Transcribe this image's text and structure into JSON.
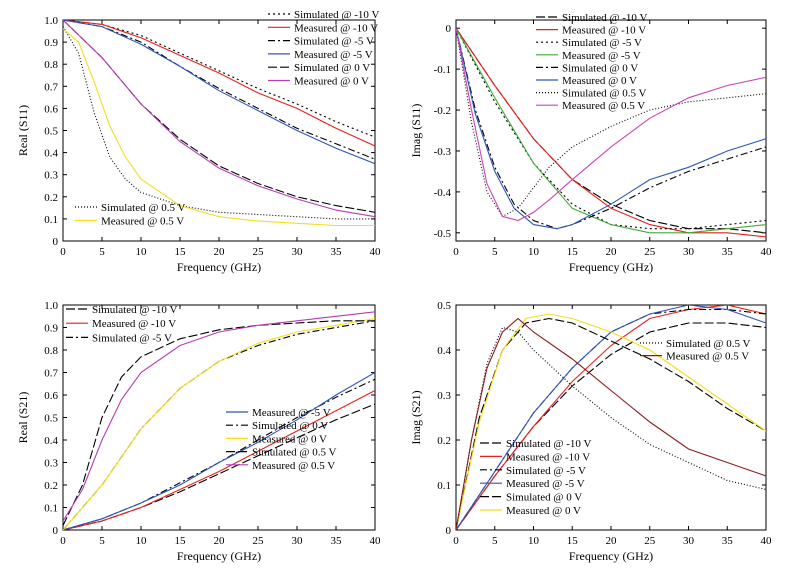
{
  "chart_data": [
    {
      "type": "line",
      "xlabel": "Frequency (GHz)",
      "ylabel": "Real (S11)",
      "xlim": [
        0,
        40
      ],
      "ylim": [
        0,
        1.0
      ],
      "xticks": [
        "0",
        "5",
        "10",
        "15",
        "20",
        "25",
        "30",
        "35",
        "40"
      ],
      "yticks": [
        "0",
        "0.1",
        "0.2",
        "0.3",
        "0.4",
        "0.5",
        "0.6",
        "0.7",
        "0.8",
        "0.9",
        "1.0"
      ],
      "legend_position": "top-right",
      "legend2_position": "bottom-left",
      "series": [
        {
          "name": "Simulated @ -10 V",
          "color": "#000000",
          "dash": "2,3",
          "x": [
            0,
            5,
            10,
            15,
            20,
            25,
            30,
            35,
            40
          ],
          "y": [
            1.0,
            0.98,
            0.93,
            0.85,
            0.77,
            0.69,
            0.62,
            0.54,
            0.47
          ]
        },
        {
          "name": "Measured @ -10 V",
          "color": "#e8201c",
          "dash": "",
          "x": [
            0,
            5,
            10,
            15,
            20,
            25,
            30,
            35,
            40
          ],
          "y": [
            1.0,
            0.98,
            0.92,
            0.84,
            0.76,
            0.67,
            0.6,
            0.51,
            0.43
          ]
        },
        {
          "name": "Simulated @ -5 V",
          "color": "#000000",
          "dash": "7,3,2,3",
          "x": [
            0,
            5,
            10,
            15,
            20,
            25,
            30,
            35,
            40
          ],
          "y": [
            1.0,
            0.97,
            0.9,
            0.79,
            0.69,
            0.6,
            0.51,
            0.44,
            0.37
          ]
        },
        {
          "name": "Measured @ -5 V",
          "color": "#2f55b7",
          "dash": "",
          "x": [
            0,
            5,
            10,
            15,
            20,
            25,
            30,
            35,
            40
          ],
          "y": [
            1.0,
            0.97,
            0.89,
            0.79,
            0.68,
            0.59,
            0.5,
            0.42,
            0.35
          ]
        },
        {
          "name": "Simulated @ 0 V",
          "color": "#000000",
          "dash": "9,3",
          "x": [
            0,
            5,
            10,
            15,
            20,
            25,
            30,
            35,
            40
          ],
          "y": [
            1.0,
            0.83,
            0.62,
            0.46,
            0.34,
            0.26,
            0.2,
            0.16,
            0.13
          ]
        },
        {
          "name": "Measured @ 0 V",
          "color": "#b53db4",
          "dash": "",
          "x": [
            0,
            5,
            10,
            15,
            20,
            25,
            30,
            35,
            40
          ],
          "y": [
            1.0,
            0.83,
            0.62,
            0.45,
            0.33,
            0.25,
            0.19,
            0.14,
            0.11
          ]
        },
        {
          "name": "Simulated @ 0.5 V",
          "color": "#000000",
          "dash": "1,2",
          "x": [
            0,
            2,
            4,
            6,
            8,
            10,
            15,
            20,
            25,
            30,
            35,
            40
          ],
          "y": [
            0.97,
            0.85,
            0.58,
            0.38,
            0.28,
            0.22,
            0.16,
            0.13,
            0.12,
            0.11,
            0.1,
            0.1
          ]
        },
        {
          "name": "Measured @ 0.5 V",
          "color": "#f2df1a",
          "dash": "",
          "x": [
            0,
            2,
            4,
            6,
            8,
            10,
            15,
            20,
            25,
            30,
            35,
            40
          ],
          "y": [
            0.96,
            0.9,
            0.72,
            0.52,
            0.38,
            0.28,
            0.16,
            0.11,
            0.09,
            0.08,
            0.07,
            0.07
          ]
        }
      ]
    },
    {
      "type": "line",
      "xlabel": "Frequency (GHz)",
      "ylabel": "Imag (S11)",
      "xlim": [
        0,
        40
      ],
      "ylim": [
        -0.52,
        0.02
      ],
      "xticks": [
        "0",
        "5",
        "10",
        "15",
        "20",
        "25",
        "30",
        "35",
        "40"
      ],
      "yticks": [
        "0",
        "-0.1",
        "-0.2",
        "-0.3",
        "-0.4",
        "-0.5"
      ],
      "legend_position": "top-right",
      "series": [
        {
          "name": "Simulated @ -10 V",
          "color": "#000000",
          "dash": "9,3",
          "x": [
            0,
            5,
            10,
            15,
            20,
            25,
            30,
            35,
            40
          ],
          "y": [
            0,
            -0.14,
            -0.27,
            -0.37,
            -0.43,
            -0.47,
            -0.49,
            -0.49,
            -0.5
          ]
        },
        {
          "name": "Measured @ -10 V",
          "color": "#e8201c",
          "dash": "",
          "x": [
            0,
            5,
            10,
            15,
            20,
            25,
            30,
            35,
            40
          ],
          "y": [
            0,
            -0.14,
            -0.27,
            -0.37,
            -0.44,
            -0.48,
            -0.5,
            -0.5,
            -0.51
          ]
        },
        {
          "name": "Simulated @ -5 V",
          "color": "#000000",
          "dash": "2,3",
          "x": [
            0,
            5,
            10,
            15,
            20,
            25,
            30,
            35,
            40
          ],
          "y": [
            0,
            -0.18,
            -0.33,
            -0.43,
            -0.48,
            -0.49,
            -0.49,
            -0.48,
            -0.47
          ]
        },
        {
          "name": "Measured @ -5 V",
          "color": "#3faa37",
          "dash": "",
          "x": [
            0,
            5,
            10,
            15,
            20,
            25,
            30,
            35,
            40
          ],
          "y": [
            0,
            -0.17,
            -0.33,
            -0.44,
            -0.48,
            -0.5,
            -0.5,
            -0.49,
            -0.48
          ]
        },
        {
          "name": "Simulated @ 0 V",
          "color": "#000000",
          "dash": "7,3,2,3",
          "x": [
            0,
            2.5,
            5,
            7.5,
            10,
            13,
            15,
            20,
            25,
            30,
            35,
            40
          ],
          "y": [
            0,
            -0.2,
            -0.34,
            -0.43,
            -0.47,
            -0.49,
            -0.48,
            -0.44,
            -0.39,
            -0.35,
            -0.32,
            -0.29
          ]
        },
        {
          "name": "Measured @ 0 V",
          "color": "#2f55b7",
          "dash": "",
          "x": [
            0,
            2.5,
            5,
            7.5,
            10,
            13,
            15,
            20,
            25,
            30,
            35,
            40
          ],
          "y": [
            0,
            -0.21,
            -0.35,
            -0.44,
            -0.48,
            -0.49,
            -0.48,
            -0.43,
            -0.37,
            -0.34,
            -0.3,
            -0.27
          ]
        },
        {
          "name": "Simulated @ 0.5 V",
          "color": "#000000",
          "dash": "1,2",
          "x": [
            0,
            2,
            4,
            6,
            8,
            10,
            12,
            15,
            20,
            25,
            30,
            35,
            40
          ],
          "y": [
            0,
            -0.23,
            -0.4,
            -0.46,
            -0.44,
            -0.39,
            -0.34,
            -0.29,
            -0.24,
            -0.2,
            -0.18,
            -0.17,
            -0.16
          ]
        },
        {
          "name": "Measured @ 0.5 V",
          "color": "#cc44b6",
          "dash": "",
          "x": [
            0,
            2,
            4,
            6,
            8,
            10,
            12,
            15,
            20,
            25,
            30,
            35,
            40
          ],
          "y": [
            0,
            -0.2,
            -0.38,
            -0.46,
            -0.47,
            -0.45,
            -0.42,
            -0.37,
            -0.29,
            -0.22,
            -0.17,
            -0.14,
            -0.12
          ]
        }
      ]
    },
    {
      "type": "line",
      "xlabel": "Frequency (GHz)",
      "ylabel": "Real (S21)",
      "xlim": [
        0,
        40
      ],
      "ylim": [
        0,
        1.0
      ],
      "xticks": [
        "0",
        "5",
        "10",
        "15",
        "20",
        "25",
        "30",
        "35",
        "40"
      ],
      "yticks": [
        "0",
        "0.1",
        "0.2",
        "0.3",
        "0.4",
        "0.5",
        "0.6",
        "0.7",
        "0.8",
        "0.9",
        "1.0"
      ],
      "legend_position": "top-left",
      "legend2_position": "bottom-right",
      "series": [
        {
          "name": "Simulated @ -10 V",
          "color": "#000000",
          "dash": "9,3",
          "x": [
            0,
            5,
            10,
            15,
            20,
            25,
            30,
            35,
            40
          ],
          "y": [
            0,
            0.04,
            0.1,
            0.17,
            0.25,
            0.33,
            0.41,
            0.49,
            0.56
          ]
        },
        {
          "name": "Measured @ -10 V",
          "color": "#e8201c",
          "dash": "",
          "x": [
            0,
            5,
            10,
            15,
            20,
            25,
            30,
            35,
            40
          ],
          "y": [
            0,
            0.04,
            0.1,
            0.18,
            0.26,
            0.35,
            0.44,
            0.53,
            0.62
          ]
        },
        {
          "name": "Simulated @ -5 V",
          "color": "#000000",
          "dash": "7,3,2,3",
          "x": [
            0,
            5,
            10,
            15,
            20,
            25,
            30,
            35,
            40
          ],
          "y": [
            0,
            0.05,
            0.12,
            0.21,
            0.3,
            0.4,
            0.5,
            0.59,
            0.67
          ]
        },
        {
          "name": "Measured @ -5 V",
          "color": "#2f55b7",
          "dash": "",
          "x": [
            0,
            5,
            10,
            15,
            20,
            25,
            30,
            35,
            40
          ],
          "y": [
            0,
            0.05,
            0.12,
            0.2,
            0.3,
            0.39,
            0.49,
            0.6,
            0.7
          ]
        },
        {
          "name": "Simulated @ 0 V",
          "color": "#000000",
          "dash": "7,3,2,3",
          "x": [
            0,
            5,
            10,
            15,
            20,
            25,
            30,
            35,
            40
          ],
          "y": [
            0,
            0.2,
            0.45,
            0.63,
            0.75,
            0.82,
            0.87,
            0.9,
            0.93
          ]
        },
        {
          "name": "Measured @ 0 V",
          "color": "#f2df1a",
          "dash": "",
          "x": [
            0,
            5,
            10,
            15,
            20,
            25,
            30,
            35,
            40
          ],
          "y": [
            0,
            0.2,
            0.45,
            0.63,
            0.75,
            0.83,
            0.88,
            0.91,
            0.94
          ]
        },
        {
          "name": "Simulated @ 0.5 V",
          "color": "#000000",
          "dash": "9,3",
          "x": [
            0,
            2.5,
            5,
            7.5,
            10,
            15,
            20,
            25,
            30,
            35,
            40
          ],
          "y": [
            0.02,
            0.2,
            0.5,
            0.68,
            0.77,
            0.85,
            0.89,
            0.91,
            0.92,
            0.93,
            0.93
          ]
        },
        {
          "name": "Measured @ 0.5 V",
          "color": "#b53db4",
          "dash": "",
          "x": [
            0,
            2.5,
            5,
            7.5,
            10,
            15,
            20,
            25,
            30,
            35,
            40
          ],
          "y": [
            0.04,
            0.18,
            0.4,
            0.58,
            0.7,
            0.82,
            0.88,
            0.91,
            0.93,
            0.95,
            0.97
          ]
        }
      ]
    },
    {
      "type": "line",
      "xlabel": "Frequency (GHz)",
      "ylabel": "Imag (S21)",
      "xlim": [
        0,
        40
      ],
      "ylim": [
        0,
        0.5
      ],
      "xticks": [
        "0",
        "5",
        "10",
        "15",
        "20",
        "25",
        "30",
        "35",
        "40"
      ],
      "yticks": [
        "0",
        "0.1",
        "0.2",
        "0.3",
        "0.4",
        "0.5"
      ],
      "legend_position": "bottom-left",
      "legend2_position": "top-right",
      "series": [
        {
          "name": "Simulated @ -10 V",
          "color": "#000000",
          "dash": "9,3",
          "x": [
            0,
            5,
            10,
            15,
            20,
            25,
            30,
            35,
            40
          ],
          "y": [
            0,
            0.12,
            0.23,
            0.32,
            0.39,
            0.44,
            0.46,
            0.46,
            0.45
          ]
        },
        {
          "name": "Measured @ -10 V",
          "color": "#e8201c",
          "dash": "",
          "x": [
            0,
            5,
            10,
            15,
            20,
            25,
            30,
            35,
            40
          ],
          "y": [
            0,
            0.12,
            0.23,
            0.33,
            0.41,
            0.47,
            0.49,
            0.5,
            0.48
          ]
        },
        {
          "name": "Simulated @ -5 V",
          "color": "#000000",
          "dash": "7,3,2,3",
          "x": [
            0,
            5,
            10,
            15,
            20,
            25,
            30,
            35,
            40
          ],
          "y": [
            0,
            0.13,
            0.26,
            0.36,
            0.44,
            0.48,
            0.49,
            0.49,
            0.48
          ]
        },
        {
          "name": "Measured @ -5 V",
          "color": "#2f55b7",
          "dash": "",
          "x": [
            0,
            5,
            10,
            15,
            20,
            25,
            30,
            35,
            40
          ],
          "y": [
            0,
            0.13,
            0.26,
            0.36,
            0.44,
            0.48,
            0.5,
            0.49,
            0.46
          ]
        },
        {
          "name": "Simulated @ 0 V",
          "color": "#000000",
          "dash": "9,3",
          "x": [
            0,
            3,
            6,
            9,
            12,
            15,
            20,
            25,
            30,
            35,
            40
          ],
          "y": [
            0,
            0.25,
            0.4,
            0.46,
            0.47,
            0.46,
            0.42,
            0.38,
            0.33,
            0.27,
            0.22
          ]
        },
        {
          "name": "Measured @ 0 V",
          "color": "#f2df1a",
          "dash": "",
          "x": [
            0,
            3,
            6,
            9,
            12,
            15,
            20,
            25,
            30,
            35,
            40
          ],
          "y": [
            0,
            0.24,
            0.4,
            0.47,
            0.48,
            0.47,
            0.44,
            0.4,
            0.34,
            0.28,
            0.22
          ]
        },
        {
          "name": "Simulated @ 0.5 V",
          "color": "#000000",
          "dash": "1,2",
          "x": [
            0,
            2,
            4,
            6,
            8,
            10,
            15,
            20,
            25,
            30,
            35,
            40
          ],
          "y": [
            0,
            0.2,
            0.37,
            0.45,
            0.44,
            0.4,
            0.32,
            0.25,
            0.19,
            0.15,
            0.11,
            0.09
          ]
        },
        {
          "name": "Measured @ 0.5 V",
          "color": "#8a1d1d",
          "dash": "",
          "x": [
            0,
            2,
            4,
            6,
            8,
            10,
            15,
            20,
            25,
            30,
            35,
            40
          ],
          "y": [
            0,
            0.2,
            0.36,
            0.44,
            0.47,
            0.44,
            0.38,
            0.31,
            0.24,
            0.18,
            0.15,
            0.12
          ]
        }
      ]
    }
  ],
  "panels": [
    {
      "legends": [
        {
          "items": [
            0,
            1,
            2,
            3,
            4,
            5
          ]
        },
        {
          "items": [
            6,
            7
          ]
        }
      ]
    },
    {
      "legends": [
        {
          "items": [
            0,
            1,
            2,
            3,
            4,
            5,
            6,
            7
          ]
        }
      ]
    },
    {
      "legends": [
        {
          "items": [
            0,
            1,
            2
          ]
        },
        {
          "items": [
            3,
            4,
            5,
            6,
            7
          ]
        }
      ]
    },
    {
      "legends": [
        {
          "items": [
            0,
            1,
            2,
            3,
            4,
            5
          ]
        },
        {
          "items": [
            6,
            7
          ]
        }
      ]
    }
  ]
}
